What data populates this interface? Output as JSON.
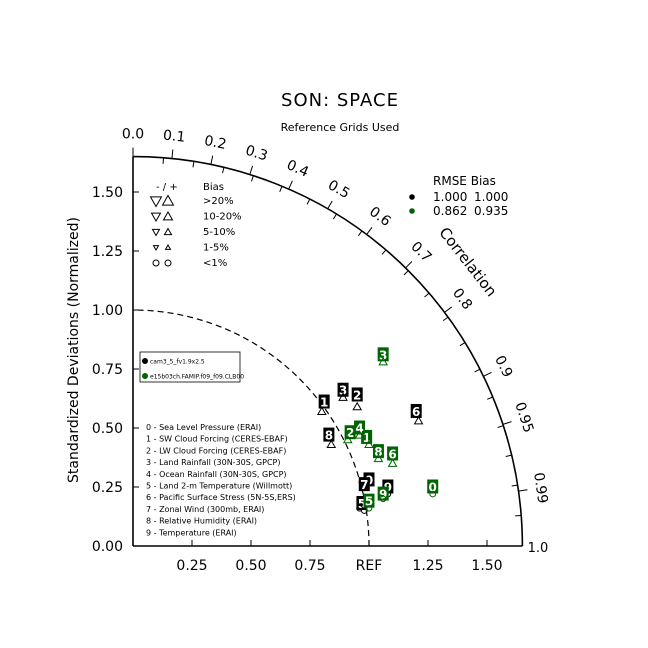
{
  "title": "SON: SPACE",
  "subtitle": "Reference Grids Used",
  "y_axis_label": "Standardized Deviations (Normalized)",
  "corr_label": "Correlation",
  "ref_label": "REF",
  "x_ticks": [
    "0.25",
    "0.50",
    "0.75",
    "1.25",
    "1.50"
  ],
  "x_tick_values": [
    0.25,
    0.5,
    0.75,
    1.25,
    1.5
  ],
  "y_ticks": [
    "0.00",
    "0.25",
    "0.50",
    "0.75",
    "1.00",
    "1.25",
    "1.50"
  ],
  "y_tick_values": [
    0,
    0.25,
    0.5,
    0.75,
    1.0,
    1.25,
    1.5
  ],
  "radius_end_label": "1.0",
  "corr_ticks": [
    "0.0",
    "0.1",
    "0.2",
    "0.3",
    "0.4",
    "0.5",
    "0.6",
    "0.7",
    "0.8",
    "0.9",
    "0.95",
    "0.99"
  ],
  "corr_tick_values": [
    0.0,
    0.1,
    0.2,
    0.3,
    0.4,
    0.5,
    0.6,
    0.7,
    0.8,
    0.9,
    0.95,
    0.99
  ],
  "bias_legend": {
    "header_sign": "- / +",
    "header_label": "Bias",
    "rows": [
      {
        "label": ">20%",
        "size": 5.5
      },
      {
        "label": "10-20%",
        "size": 4.5
      },
      {
        "label": "5-10%",
        "size": 3.5
      },
      {
        "label": "1-5%",
        "size": 2.5
      },
      {
        "label": "<1%",
        "size": 0
      }
    ]
  },
  "rmse_legend": {
    "header": "RMSE  Bias",
    "rows": [
      {
        "rmse": "1.000",
        "bias": "1.000",
        "color": "#000000"
      },
      {
        "rmse": "0.862",
        "bias": "0.935",
        "color": "#006400"
      }
    ]
  },
  "case_legend": [
    "cam3_5_fv1.9x2.5",
    "e15b03ch.FAMIP.f09_f09.CLB00"
  ],
  "variable_legend": [
    "0 - Sea Level Pressure (ERAI)",
    "1 - SW Cloud Forcing (CERES-EBAF)",
    "2 - LW Cloud Forcing (CERES-EBAF)",
    "3 - Land Rainfall (30N-30S, GPCP)",
    "4 - Ocean Rainfall (30N-30S, GPCP)",
    "5 - Land 2-m Temperature (Willmott)",
    "6 - Pacific Surface Stress (5N-5S,ERS)",
    "7 - Zonal Wind (300mb, ERAI)",
    "8 - Relative Humidity (ERAI)",
    "9 - Temperature (ERAI)"
  ],
  "chart_data": {
    "type": "scatter",
    "title": "SON: SPACE",
    "subtitle": "Reference Grids Used",
    "ylabel": "Standardized Deviations (Normalized)",
    "xlim": [
      0,
      1.65
    ],
    "ylim": [
      0,
      1.65
    ],
    "series": [
      {
        "name": "cam3_5_fv1.9x2.5",
        "color": "#000000",
        "points": [
          {
            "id": "0",
            "x": 1.0,
            "y": 0.28,
            "bias": "circle",
            "bias_pt": [
              0.97,
              0.27
            ]
          },
          {
            "id": "1",
            "x": 0.81,
            "y": 0.61,
            "bias": "tri-up",
            "bias_pt": [
              0.8,
              0.57
            ]
          },
          {
            "id": "2",
            "x": 0.95,
            "y": 0.64,
            "bias": "tri-up",
            "bias_pt": [
              0.95,
              0.59
            ]
          },
          {
            "id": "3",
            "x": 0.89,
            "y": 0.66,
            "bias": "tri-up",
            "bias_pt": [
              0.89,
              0.63
            ]
          },
          {
            "id": "5",
            "x": 0.97,
            "y": 0.18,
            "bias": "circle",
            "bias_pt": [
              0.98,
              0.15
            ]
          },
          {
            "id": "6",
            "x": 1.2,
            "y": 0.57,
            "bias": "tri-up",
            "bias_pt": [
              1.21,
              0.53
            ]
          },
          {
            "id": "7",
            "x": 0.98,
            "y": 0.26,
            "bias": "circle",
            "bias_pt": [
              0.96,
              0.16
            ]
          },
          {
            "id": "8",
            "x": 0.83,
            "y": 0.47,
            "bias": "tri-up",
            "bias_pt": [
              0.84,
              0.43
            ]
          },
          {
            "id": "9",
            "x": 1.08,
            "y": 0.25,
            "bias": "circle",
            "bias_pt": [
              1.08,
              0.22
            ]
          }
        ]
      },
      {
        "name": "e15b03ch.FAMIP.f09_f09.CLB00",
        "color": "#006400",
        "points": [
          {
            "id": "0",
            "x": 1.27,
            "y": 0.25,
            "bias": "circle",
            "bias_pt": [
              1.27,
              0.22
            ]
          },
          {
            "id": "1",
            "x": 0.99,
            "y": 0.46,
            "bias": "tri-up",
            "bias_pt": [
              1.0,
              0.43
            ]
          },
          {
            "id": "2",
            "x": 0.92,
            "y": 0.48,
            "bias": "tri-up",
            "bias_pt": [
              0.91,
              0.45
            ]
          },
          {
            "id": "3",
            "x": 1.06,
            "y": 0.81,
            "bias": "tri-up",
            "bias_pt": [
              1.06,
              0.78
            ]
          },
          {
            "id": "4",
            "x": 0.96,
            "y": 0.5,
            "bias": "tri-up",
            "bias_pt": [
              0.96,
              0.47
            ]
          },
          {
            "id": "5",
            "x": 1.0,
            "y": 0.19,
            "bias": "circle",
            "bias_pt": [
              1.0,
              0.16
            ]
          },
          {
            "id": "6",
            "x": 1.1,
            "y": 0.39,
            "bias": "tri-up",
            "bias_pt": [
              1.1,
              0.35
            ]
          },
          {
            "id": "8",
            "x": 1.04,
            "y": 0.4,
            "bias": "tri-up",
            "bias_pt": [
              1.04,
              0.37
            ]
          },
          {
            "id": "9",
            "x": 1.06,
            "y": 0.22,
            "bias": "circle",
            "bias_pt": [
              1.06,
              0.2
            ]
          }
        ]
      }
    ]
  }
}
